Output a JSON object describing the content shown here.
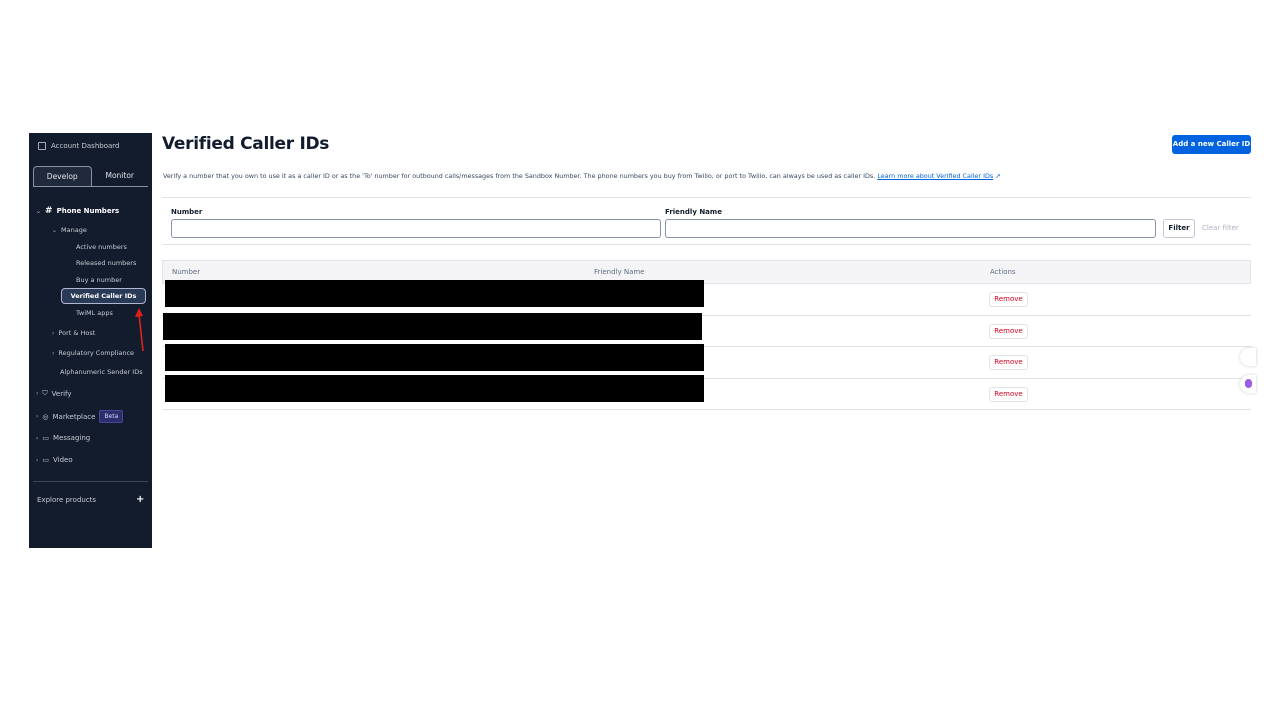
{
  "sidebar": {
    "account_dashboard": "Account Dashboard",
    "tabs": [
      "Develop",
      "Monitor"
    ],
    "phone_numbers": "Phone Numbers",
    "manage": "Manage",
    "manage_items": [
      "Active numbers",
      "Released numbers",
      "Buy a number",
      "Verified Caller IDs",
      "TwiML apps"
    ],
    "port_host": "Port & Host",
    "regulatory": "Regulatory Compliance",
    "alphanumeric": "Alphanumeric Sender IDs",
    "verify": "Verify",
    "marketplace": "Marketplace",
    "beta": "Beta",
    "messaging": "Messaging",
    "video": "Video",
    "explore": "Explore products",
    "plus": "+"
  },
  "header": {
    "title": "Verified Caller IDs",
    "add_button": "Add a new Caller ID"
  },
  "description": {
    "text": "Verify a number that you own to use it as a caller ID or as the 'To' number for outbound calls/messages from the Sandbox Number. The phone numbers you buy from Twilio, or port to Twilio, can always be used as caller IDs.",
    "link": "Learn more about Verified Caller IDs",
    "link_icon": "↗"
  },
  "filter": {
    "number_label": "Number",
    "number_value": "",
    "friendly_label": "Friendly Name",
    "friendly_value": "",
    "filter_button": "Filter",
    "clear_filter": "Clear filter"
  },
  "table": {
    "columns": [
      "Number",
      "Friendly Name",
      "Actions"
    ],
    "rows": [
      {
        "action": "Remove"
      },
      {
        "action": "Remove"
      },
      {
        "action": "Remove"
      },
      {
        "action": "Remove"
      }
    ]
  },
  "colors": {
    "sidebar": "#121c2d",
    "primary": "#0263e0",
    "danger": "#d6001c"
  }
}
